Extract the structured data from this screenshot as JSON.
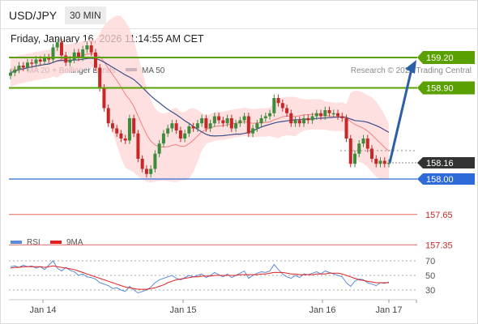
{
  "header": {
    "symbol": "USD/JPY",
    "timeframe": "30 MIN",
    "timestamp": "Friday, January 16, 2026 11:14:55 AM CET"
  },
  "legend": {
    "ma20_label": "MA 20 + Bollinger Bands",
    "ma50_label": "MA 50",
    "credit": "Research © 2026 Trading Central",
    "rsi_label": "RSI",
    "rsi_ma_label": "9MA"
  },
  "colors": {
    "ma20": "#f08080",
    "ma50": "#3a4f8c",
    "bollinger_fill": "#ffd6d6",
    "candle_up": "#3c8c3c",
    "candle_down": "#c62828",
    "resistance": "#5aa000",
    "pivot": "#2f6bd8",
    "support": "#e06666",
    "rsi": "#5b8bd8",
    "rsi_ma": "#e02020"
  },
  "chart_data": {
    "type": "candlestick",
    "x_ticks": [
      "Jan 14",
      "Jan 15",
      "Jan 16",
      "Jan 17"
    ],
    "levels": [
      {
        "value": 159.2,
        "label": "159.20",
        "kind": "resistance"
      },
      {
        "value": 158.9,
        "label": "158.90",
        "kind": "resistance"
      },
      {
        "value": 158.16,
        "label": "158.16",
        "kind": "last"
      },
      {
        "value": 158.0,
        "label": "158.00",
        "kind": "pivot"
      },
      {
        "value": 157.65,
        "label": "157.65",
        "kind": "support"
      },
      {
        "value": 157.35,
        "label": "157.35",
        "kind": "support"
      }
    ],
    "close": [
      159.05,
      159.08,
      159.12,
      159.1,
      159.15,
      159.14,
      159.18,
      159.16,
      159.2,
      159.18,
      159.3,
      159.35,
      159.22,
      159.15,
      159.18,
      159.25,
      159.2,
      159.28,
      159.32,
      159.25,
      159.1,
      158.9,
      158.7,
      158.55,
      158.5,
      158.45,
      158.4,
      158.38,
      158.6,
      158.45,
      158.2,
      158.1,
      158.05,
      158.1,
      158.25,
      158.35,
      158.45,
      158.5,
      158.55,
      158.48,
      158.4,
      158.45,
      158.52,
      158.5,
      158.55,
      158.6,
      158.5,
      158.55,
      158.62,
      158.58,
      158.55,
      158.6,
      158.5,
      158.55,
      158.58,
      158.62,
      158.45,
      158.5,
      158.55,
      158.6,
      158.62,
      158.65,
      158.8,
      158.75,
      158.7,
      158.65,
      158.55,
      158.58,
      158.55,
      158.6,
      158.58,
      158.62,
      158.65,
      158.62,
      158.68,
      158.65,
      158.65,
      158.62,
      158.6,
      158.4,
      158.15,
      158.25,
      158.35,
      158.4,
      158.3,
      158.2,
      158.15,
      158.18,
      158.15,
      158.16
    ],
    "rsi": {
      "levels": [
        70,
        50,
        30
      ],
      "values": [
        62,
        63,
        61,
        64,
        62,
        63,
        60,
        62,
        58,
        64,
        70,
        60,
        56,
        61,
        57,
        55,
        50,
        52,
        48,
        47,
        45,
        40,
        38,
        36,
        32,
        33,
        30,
        28,
        35,
        30,
        26,
        28,
        30,
        34,
        40,
        44,
        46,
        48,
        50,
        46,
        44,
        47,
        50,
        48,
        50,
        52,
        47,
        50,
        54,
        51,
        48,
        52,
        47,
        50,
        53,
        56,
        46,
        50,
        53,
        55,
        54,
        56,
        65,
        58,
        52,
        48,
        46,
        50,
        47,
        52,
        51,
        53,
        55,
        52,
        56,
        54,
        52,
        50,
        48,
        40,
        35,
        42,
        45,
        44,
        40,
        38,
        36,
        40,
        39,
        41
      ],
      "ma": [
        60,
        61,
        61,
        62,
        62,
        62,
        62,
        62,
        61,
        62,
        63,
        62,
        61,
        60,
        59,
        58,
        56,
        54,
        52,
        50,
        48,
        46,
        44,
        42,
        40,
        38,
        36,
        34,
        33,
        32,
        31,
        31,
        31,
        32,
        33,
        35,
        37,
        40,
        42,
        44,
        45,
        46,
        47,
        48,
        48,
        49,
        49,
        49,
        50,
        50,
        50,
        50,
        50,
        50,
        51,
        51,
        51,
        51,
        51,
        52,
        52,
        53,
        54,
        54,
        54,
        53,
        52,
        52,
        51,
        51,
        51,
        51,
        52,
        52,
        52,
        53,
        53,
        53,
        52,
        50,
        48,
        46,
        44,
        43,
        42,
        41,
        40,
        40,
        40,
        40
      ]
    }
  }
}
